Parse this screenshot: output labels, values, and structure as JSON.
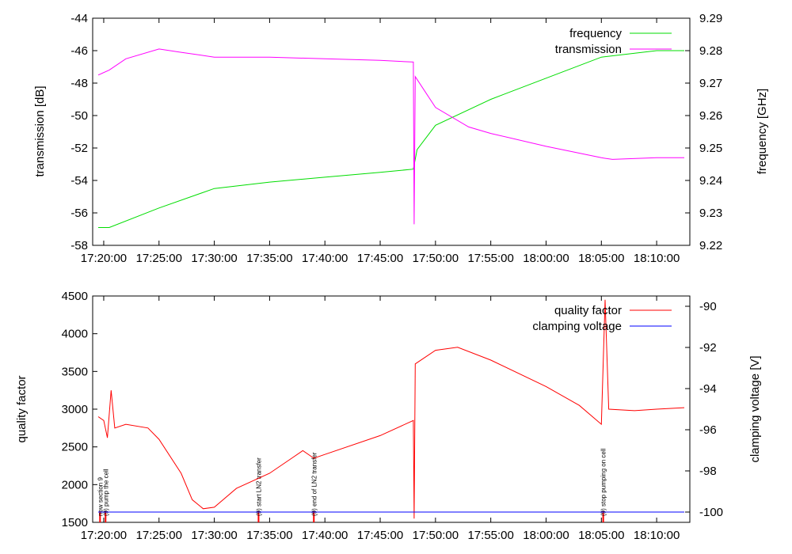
{
  "chart_data": [
    {
      "type": "line",
      "x_unit": "time",
      "xlim": [
        "17:19:00",
        "18:13:00"
      ],
      "x_ticks": [
        "17:20:00",
        "17:25:00",
        "17:30:00",
        "17:35:00",
        "17:40:00",
        "17:45:00",
        "17:50:00",
        "17:55:00",
        "18:00:00",
        "18:05:00",
        "18:10:00"
      ],
      "ylabel": "transmission [dB]",
      "ylim": [
        -58,
        -44
      ],
      "y_ticks": [
        "-44",
        "-46",
        "-48",
        "-50",
        "-52",
        "-54",
        "-56",
        "-58"
      ],
      "y2label": "frequency [GHz]",
      "y2lim": [
        9.22,
        9.29
      ],
      "y2_ticks": [
        "9.29",
        "9.28",
        "9.27",
        "9.26",
        "9.25",
        "9.24",
        "9.23",
        "9.22"
      ],
      "legend_position": "top-right",
      "series": [
        {
          "name": "frequency",
          "axis": "right",
          "color": "#00dd00",
          "points": [
            [
              "17:19:30",
              9.2255
            ],
            [
              "17:20:30",
              9.2255
            ],
            [
              "17:25:00",
              9.2315
            ],
            [
              "17:30:00",
              9.2375
            ],
            [
              "17:35:00",
              9.2395
            ],
            [
              "17:40:00",
              9.241
            ],
            [
              "17:45:00",
              9.2425
            ],
            [
              "17:48:00",
              9.2435
            ],
            [
              "17:48:20",
              9.2495
            ],
            [
              "17:50:00",
              9.257
            ],
            [
              "17:55:00",
              9.265
            ],
            [
              "18:00:00",
              9.2715
            ],
            [
              "18:05:00",
              9.278
            ],
            [
              "18:10:00",
              9.28
            ],
            [
              "18:12:30",
              9.28
            ]
          ]
        },
        {
          "name": "transmission",
          "axis": "left",
          "color": "#ff00ff",
          "points": [
            [
              "17:19:30",
              -47.5
            ],
            [
              "17:20:30",
              -47.2
            ],
            [
              "17:22:00",
              -46.5
            ],
            [
              "17:25:00",
              -45.9
            ],
            [
              "17:27:00",
              -46.1
            ],
            [
              "17:30:00",
              -46.4
            ],
            [
              "17:35:00",
              -46.4
            ],
            [
              "17:40:00",
              -46.5
            ],
            [
              "17:45:00",
              -46.6
            ],
            [
              "17:48:00",
              -46.7
            ],
            [
              "17:48:04",
              -56.7
            ],
            [
              "17:48:10",
              -47.6
            ],
            [
              "17:50:00",
              -49.5
            ],
            [
              "17:53:00",
              -50.7
            ],
            [
              "17:55:00",
              -51.1
            ],
            [
              "18:00:00",
              -51.9
            ],
            [
              "18:05:00",
              -52.6
            ],
            [
              "18:06:00",
              -52.7
            ],
            [
              "18:10:00",
              -52.6
            ],
            [
              "18:12:30",
              -52.6
            ]
          ]
        }
      ]
    },
    {
      "type": "line",
      "x_unit": "time",
      "xlim": [
        "17:19:00",
        "18:13:00"
      ],
      "x_ticks": [
        "17:20:00",
        "17:25:00",
        "17:30:00",
        "17:35:00",
        "17:40:00",
        "17:45:00",
        "17:50:00",
        "17:55:00",
        "18:00:00",
        "18:05:00",
        "18:10:00"
      ],
      "ylabel": "quality factor",
      "ylim": [
        1500,
        4500
      ],
      "y_ticks": [
        "4500",
        "4000",
        "3500",
        "3000",
        "2500",
        "2000",
        "1500"
      ],
      "y2label": "clamping voltage [V]",
      "y2lim": [
        -100.5,
        -89.5
      ],
      "y2_ticks": [
        "-90",
        "-92",
        "-94",
        "-96",
        "-98",
        "-100"
      ],
      "legend_position": "top-right",
      "series": [
        {
          "name": "quality factor",
          "axis": "left",
          "color": "#ff0000",
          "points": [
            [
              "17:19:30",
              2900
            ],
            [
              "17:20:00",
              2850
            ],
            [
              "17:20:20",
              2620
            ],
            [
              "17:20:40",
              3250
            ],
            [
              "17:21:00",
              2750
            ],
            [
              "17:22:00",
              2800
            ],
            [
              "17:24:00",
              2750
            ],
            [
              "17:25:00",
              2600
            ],
            [
              "17:27:00",
              2150
            ],
            [
              "17:28:00",
              1800
            ],
            [
              "17:29:00",
              1680
            ],
            [
              "17:30:00",
              1700
            ],
            [
              "17:32:00",
              1950
            ],
            [
              "17:35:00",
              2150
            ],
            [
              "17:37:00",
              2350
            ],
            [
              "17:38:00",
              2450
            ],
            [
              "17:39:00",
              2350
            ],
            [
              "17:40:00",
              2400
            ],
            [
              "17:45:00",
              2650
            ],
            [
              "17:48:00",
              2850
            ],
            [
              "17:48:04",
              1550
            ],
            [
              "17:48:10",
              3600
            ],
            [
              "17:50:00",
              3780
            ],
            [
              "17:52:00",
              3820
            ],
            [
              "17:55:00",
              3650
            ],
            [
              "18:00:00",
              3300
            ],
            [
              "18:03:00",
              3050
            ],
            [
              "18:05:00",
              2800
            ],
            [
              "18:05:20",
              4450
            ],
            [
              "18:05:40",
              3000
            ],
            [
              "18:08:00",
              2980
            ],
            [
              "18:10:00",
              3000
            ],
            [
              "18:12:30",
              3020
            ]
          ]
        },
        {
          "name": "clamping voltage",
          "axis": "right",
          "color": "#0000ff",
          "points": [
            [
              "17:19:30",
              -100
            ],
            [
              "18:12:30",
              -100
            ]
          ]
        }
      ],
      "annotations": [
        {
          "time": "17:19:40",
          "label": "new section 9"
        },
        {
          "time": "17:20:10",
          "label": "(9) pump the cell"
        },
        {
          "time": "17:34:00",
          "label": "(9) start LN2 transfer"
        },
        {
          "time": "17:39:00",
          "label": "(9) end of LN2 transfer"
        },
        {
          "time": "18:05:10",
          "label": "(9) stop pumping on cell"
        }
      ]
    }
  ]
}
